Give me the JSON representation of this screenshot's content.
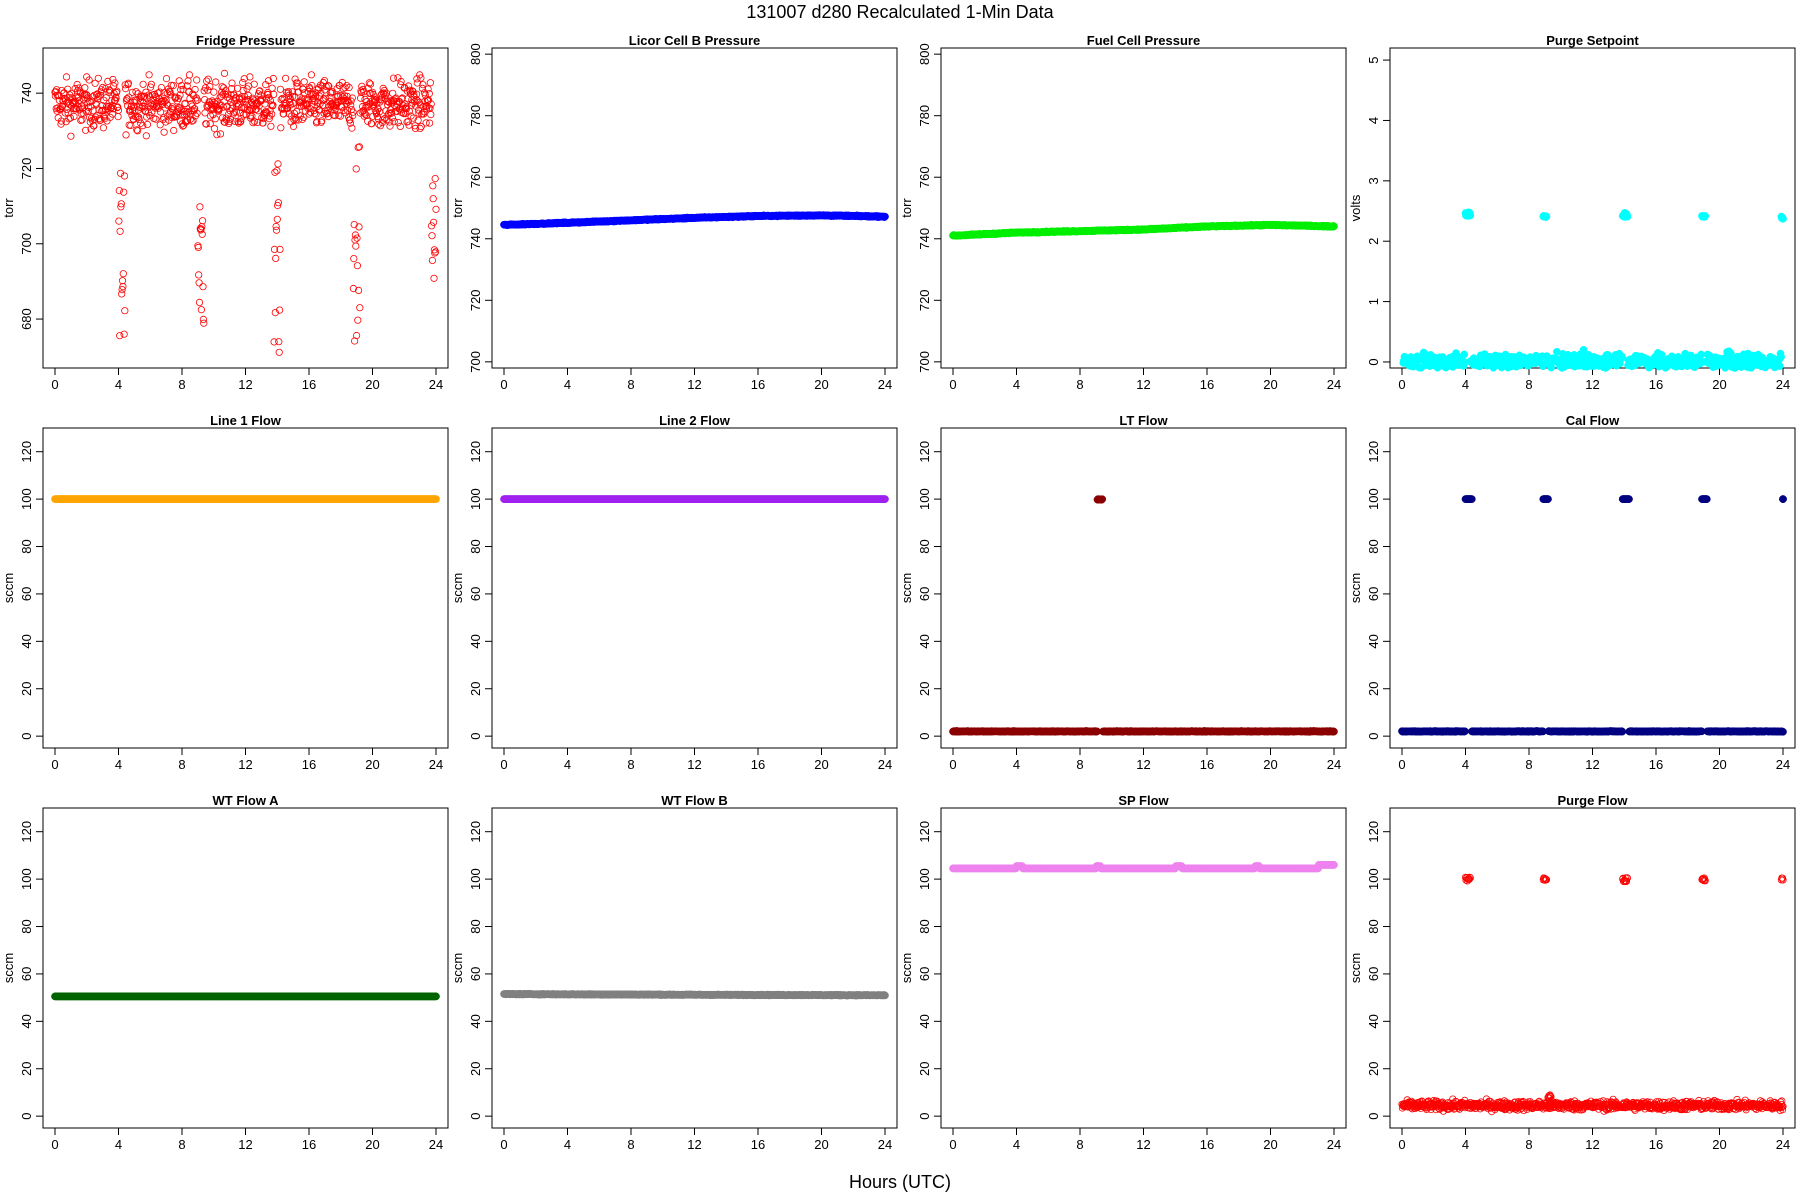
{
  "figure": {
    "title": "131007   d280   Recalculated 1-Min Data",
    "xlabel": "Hours (UTC)"
  },
  "chart_data": [
    {
      "type": "scatter",
      "title": "Fridge Pressure",
      "ylabel": "torr",
      "xlim": [
        0,
        24
      ],
      "ylim": [
        667,
        752
      ],
      "xticks": [
        0,
        4,
        8,
        12,
        16,
        20,
        24
      ],
      "yticks": [
        680,
        700,
        720,
        740
      ],
      "color": "#ff0000",
      "marker": "open-circle",
      "series": [
        {
          "pattern": "noisy",
          "base": 737,
          "noise": 5,
          "dips": [
            [
              4.0,
              4.4,
              670,
              722
            ],
            [
              9.0,
              9.4,
              669,
              714
            ],
            [
              13.8,
              14.2,
              671,
              722
            ],
            [
              18.8,
              19.2,
              674,
              727
            ],
            [
              23.7,
              24.0,
              690,
              718
            ]
          ]
        }
      ]
    },
    {
      "type": "scatter",
      "title": "Licor Cell B Pressure",
      "ylabel": "torr",
      "xlim": [
        0,
        24
      ],
      "ylim": [
        698,
        802
      ],
      "xticks": [
        0,
        4,
        8,
        12,
        16,
        20,
        24
      ],
      "yticks": [
        700,
        720,
        740,
        760,
        780,
        800
      ],
      "color": "#0000ff",
      "marker": "filled-circle",
      "series": [
        {
          "pattern": "trend",
          "points": [
            [
              0,
              744.5
            ],
            [
              4,
              745.2
            ],
            [
              8,
              746
            ],
            [
              12,
              746.8
            ],
            [
              16,
              747.4
            ],
            [
              20,
              747.6
            ],
            [
              24,
              747.2
            ]
          ]
        }
      ]
    },
    {
      "type": "scatter",
      "title": "Fuel Cell Pressure",
      "ylabel": "torr",
      "xlim": [
        0,
        24
      ],
      "ylim": [
        698,
        802
      ],
      "xticks": [
        0,
        4,
        8,
        12,
        16,
        20,
        24
      ],
      "yticks": [
        700,
        720,
        740,
        760,
        780,
        800
      ],
      "color": "#00ee00",
      "marker": "filled-circle",
      "series": [
        {
          "pattern": "trend",
          "points": [
            [
              0,
              741
            ],
            [
              4,
              742
            ],
            [
              8,
              742.5
            ],
            [
              12,
              743
            ],
            [
              16,
              744
            ],
            [
              20,
              744.5
            ],
            [
              24,
              744
            ]
          ]
        }
      ]
    },
    {
      "type": "scatter",
      "title": "Purge Setpoint",
      "ylabel": "volts",
      "xlim": [
        0,
        24
      ],
      "ylim": [
        -0.1,
        5.2
      ],
      "xticks": [
        0,
        4,
        8,
        12,
        16,
        20,
        24
      ],
      "yticks": [
        0,
        1,
        2,
        3,
        4,
        5
      ],
      "color": "#00ffff",
      "marker": "filled-circle",
      "series": [
        {
          "pattern": "baseline",
          "value": 0,
          "clusters": [
            [
              4.0,
              4.3,
              2.4,
              2.48
            ],
            [
              8.9,
              9.1,
              2.4,
              2.42
            ],
            [
              13.9,
              14.2,
              2.4,
              2.47
            ],
            [
              18.9,
              19.1,
              2.4,
              2.42
            ],
            [
              23.9,
              24.0,
              2.37,
              2.42
            ]
          ]
        }
      ]
    },
    {
      "type": "scatter",
      "title": "Line 1 Flow",
      "ylabel": "sccm",
      "xlim": [
        0,
        24
      ],
      "ylim": [
        -5,
        130
      ],
      "xticks": [
        0,
        4,
        8,
        12,
        16,
        20,
        24
      ],
      "yticks": [
        0,
        20,
        40,
        60,
        80,
        100,
        120
      ],
      "color": "#ffa500",
      "marker": "filled-circle",
      "series": [
        {
          "pattern": "flat",
          "value": 100
        }
      ]
    },
    {
      "type": "scatter",
      "title": "Line 2 Flow",
      "ylabel": "sccm",
      "xlim": [
        0,
        24
      ],
      "ylim": [
        -5,
        130
      ],
      "xticks": [
        0,
        4,
        8,
        12,
        16,
        20,
        24
      ],
      "yticks": [
        0,
        20,
        40,
        60,
        80,
        100,
        120
      ],
      "color": "#a020f0",
      "marker": "filled-circle",
      "series": [
        {
          "pattern": "flat",
          "value": 100
        }
      ]
    },
    {
      "type": "scatter",
      "title": "LT Flow",
      "ylabel": "sccm",
      "xlim": [
        0,
        24
      ],
      "ylim": [
        -5,
        130
      ],
      "xticks": [
        0,
        4,
        8,
        12,
        16,
        20,
        24
      ],
      "yticks": [
        0,
        20,
        40,
        60,
        80,
        100,
        120
      ],
      "color": "#8b0000",
      "marker": "filled-circle",
      "series": [
        {
          "pattern": "baseline",
          "value": 2,
          "clusters": [
            [
              9.1,
              9.4,
              99.6,
              100
            ]
          ]
        }
      ]
    },
    {
      "type": "scatter",
      "title": "Cal Flow",
      "ylabel": "sccm",
      "xlim": [
        0,
        24
      ],
      "ylim": [
        -5,
        130
      ],
      "xticks": [
        0,
        4,
        8,
        12,
        16,
        20,
        24
      ],
      "yticks": [
        0,
        20,
        40,
        60,
        80,
        100,
        120
      ],
      "color": "#000080",
      "marker": "filled-circle",
      "series": [
        {
          "pattern": "baseline",
          "value": 2,
          "clusters": [
            [
              4.0,
              4.4,
              100,
              100
            ],
            [
              8.9,
              9.2,
              100,
              100
            ],
            [
              13.9,
              14.3,
              100,
              100
            ],
            [
              18.9,
              19.2,
              100,
              100
            ],
            [
              24.0,
              24.0,
              100,
              100
            ]
          ]
        }
      ]
    },
    {
      "type": "scatter",
      "title": "WT Flow A",
      "ylabel": "sccm",
      "xlim": [
        0,
        24
      ],
      "ylim": [
        -5,
        130
      ],
      "xticks": [
        0,
        4,
        8,
        12,
        16,
        20,
        24
      ],
      "yticks": [
        0,
        20,
        40,
        60,
        80,
        100,
        120
      ],
      "color": "#006400",
      "marker": "filled-circle",
      "series": [
        {
          "pattern": "flat",
          "value": 50.5
        }
      ]
    },
    {
      "type": "scatter",
      "title": "WT Flow B",
      "ylabel": "sccm",
      "xlim": [
        0,
        24
      ],
      "ylim": [
        -5,
        130
      ],
      "xticks": [
        0,
        4,
        8,
        12,
        16,
        20,
        24
      ],
      "yticks": [
        0,
        20,
        40,
        60,
        80,
        100,
        120
      ],
      "color": "#808080",
      "marker": "filled-circle",
      "series": [
        {
          "pattern": "trend",
          "points": [
            [
              0,
              51.5
            ],
            [
              12,
              51.2
            ],
            [
              24,
              51
            ]
          ]
        }
      ]
    },
    {
      "type": "scatter",
      "title": "SP Flow",
      "ylabel": "sccm",
      "xlim": [
        0,
        24
      ],
      "ylim": [
        -5,
        130
      ],
      "xticks": [
        0,
        4,
        8,
        12,
        16,
        20,
        24
      ],
      "yticks": [
        0,
        20,
        40,
        60,
        80,
        100,
        120
      ],
      "color": "#ee82ee",
      "marker": "filled-circle",
      "series": [
        {
          "pattern": "flat",
          "value": 104.5,
          "bumps": [
            [
              4.0,
              4.4,
              105.5
            ],
            [
              9.0,
              9.3,
              105.5
            ],
            [
              14.0,
              14.4,
              105.5
            ],
            [
              19.0,
              19.3,
              105.5
            ],
            [
              23.0,
              24.0,
              106
            ]
          ]
        }
      ]
    },
    {
      "type": "scatter",
      "title": "Purge Flow",
      "ylabel": "sccm",
      "xlim": [
        0,
        24
      ],
      "ylim": [
        -5,
        130
      ],
      "xticks": [
        0,
        4,
        8,
        12,
        16,
        20,
        24
      ],
      "yticks": [
        0,
        20,
        40,
        60,
        80,
        100,
        120
      ],
      "color": "#ff0000",
      "marker": "open-circle",
      "series": [
        {
          "pattern": "noisy",
          "base": 4.5,
          "noise": 1.5,
          "clusters": [
            [
              4.0,
              4.3,
              99,
              101
            ],
            [
              8.9,
              9.1,
              99.5,
              100.5
            ],
            [
              13.9,
              14.2,
              99,
              101
            ],
            [
              18.9,
              19.1,
              99,
              100.5
            ],
            [
              23.9,
              24.0,
              99.5,
              100.5
            ]
          ],
          "spike": [
            9.2,
            9.4,
            8
          ]
        }
      ]
    }
  ]
}
